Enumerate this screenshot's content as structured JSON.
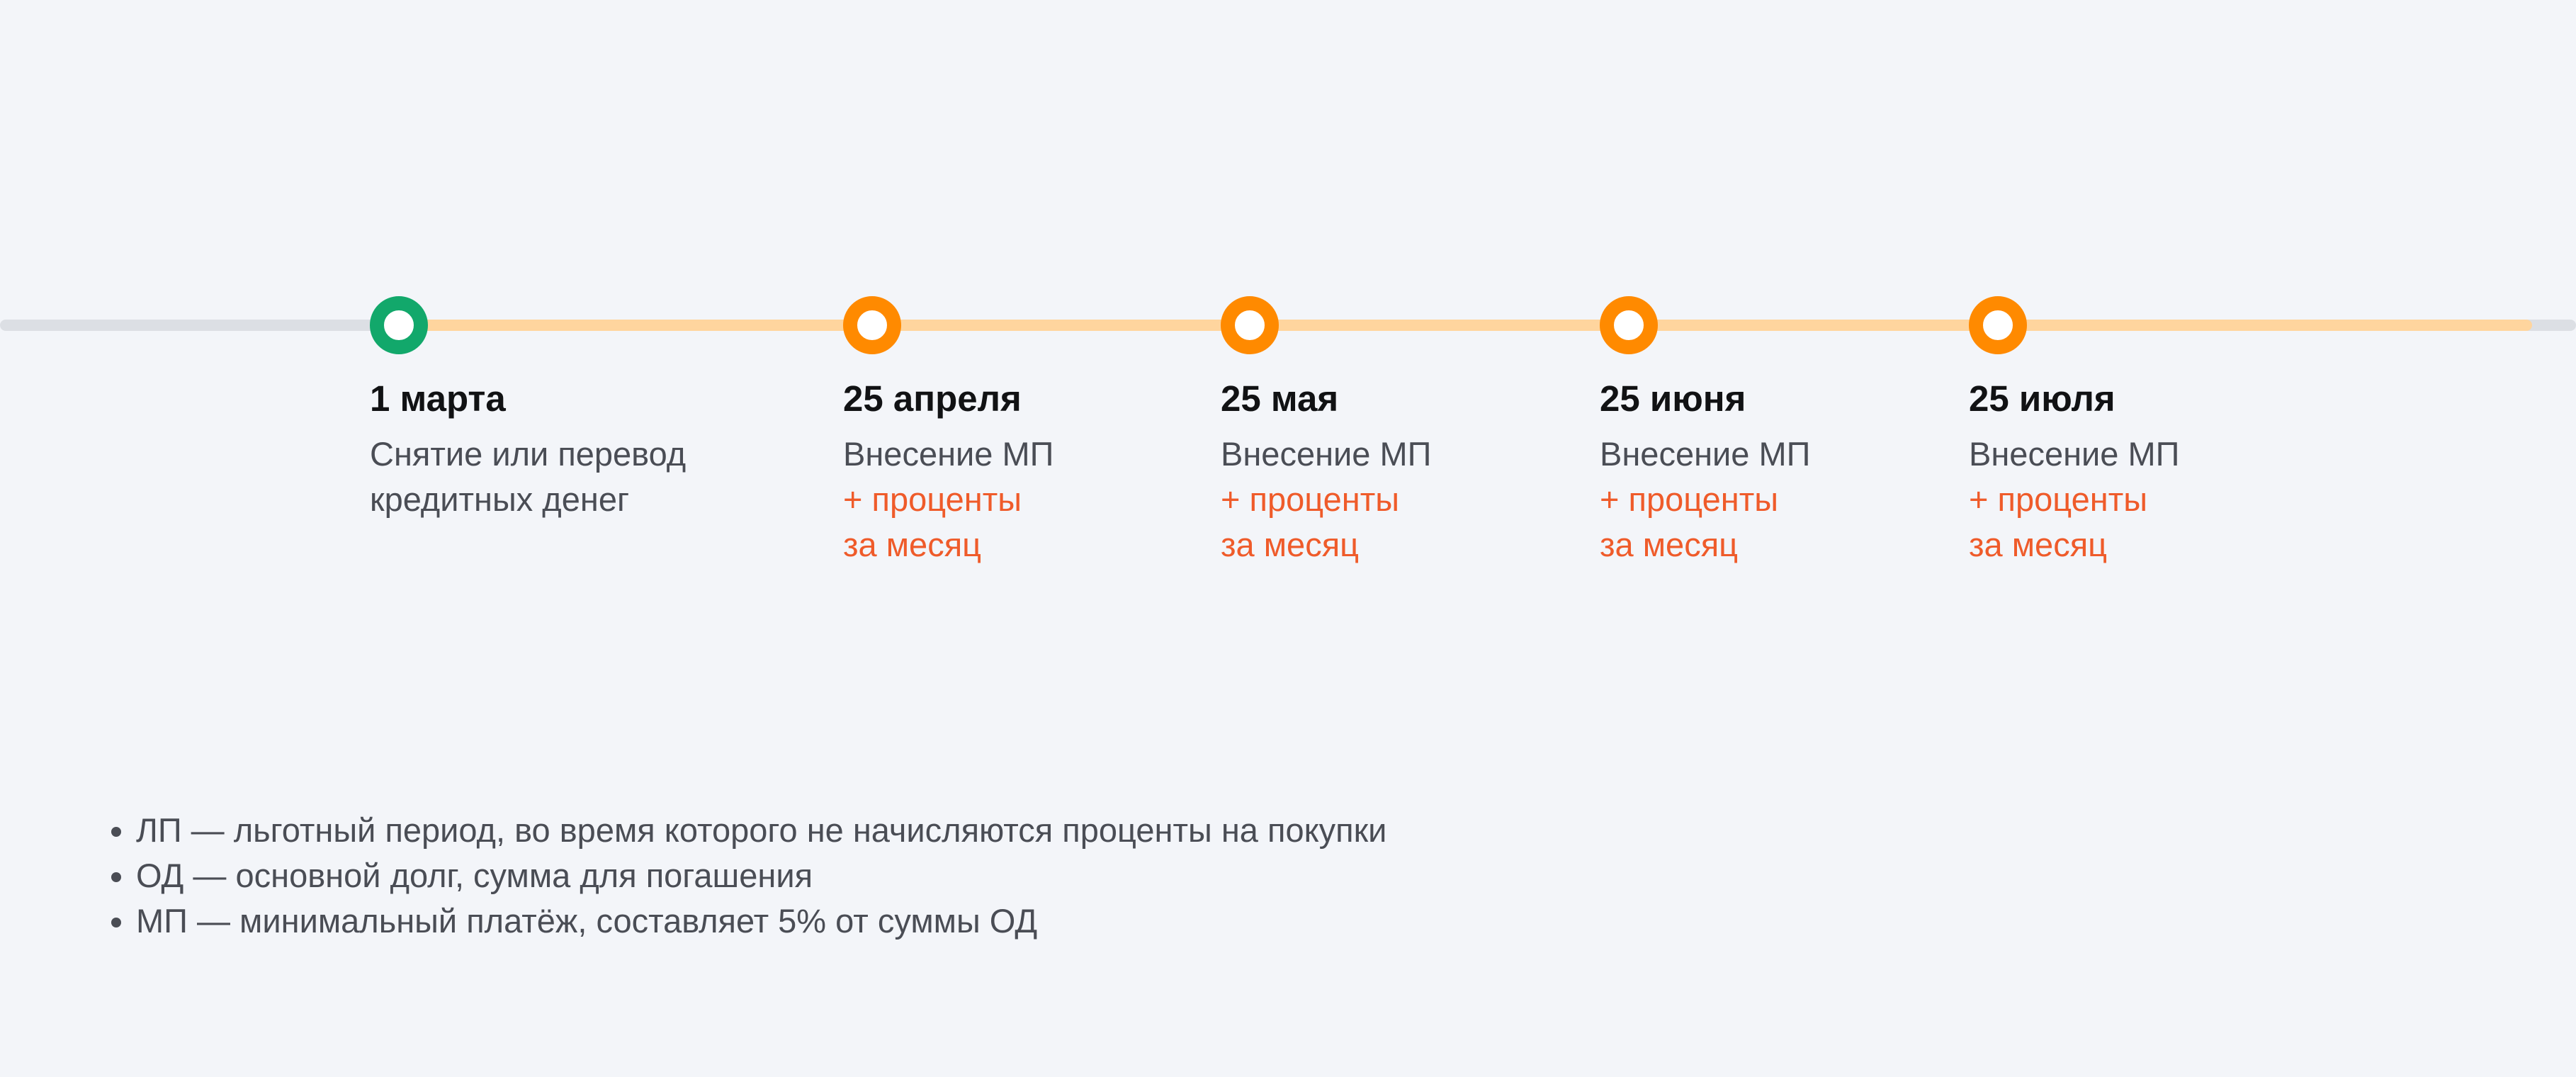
{
  "colors": {
    "background": "#f3f5f9",
    "track_past": "#dcdfe4",
    "track_active": "#ffd59e",
    "node_start": "#12a86b",
    "node_payment": "#ff8a00",
    "accent_text": "#ef5b2a"
  },
  "timeline": {
    "events": [
      {
        "date": "1 марта",
        "text_line1": "Снятие или перевод",
        "text_line2": "кредитных денег"
      },
      {
        "date": "25 апреля",
        "text_line1": "Внесение МП",
        "extra_line1": "+ проценты",
        "extra_line2": "за месяц"
      },
      {
        "date": "25 мая",
        "text_line1": "Внесение МП",
        "extra_line1": "+ проценты",
        "extra_line2": "за месяц"
      },
      {
        "date": "25 июня",
        "text_line1": "Внесение МП",
        "extra_line1": "+ проценты",
        "extra_line2": "за месяц"
      },
      {
        "date": "25 июля",
        "text_line1": "Внесение МП",
        "extra_line1": "+ проценты",
        "extra_line2": "за месяц"
      }
    ]
  },
  "legend": [
    "ЛП — льготный период, во время которого не начисляются проценты на покупки",
    "ОД — основной долг, сумма для погашения",
    "МП — минимальный платёж, составляет 5% от суммы ОД"
  ]
}
